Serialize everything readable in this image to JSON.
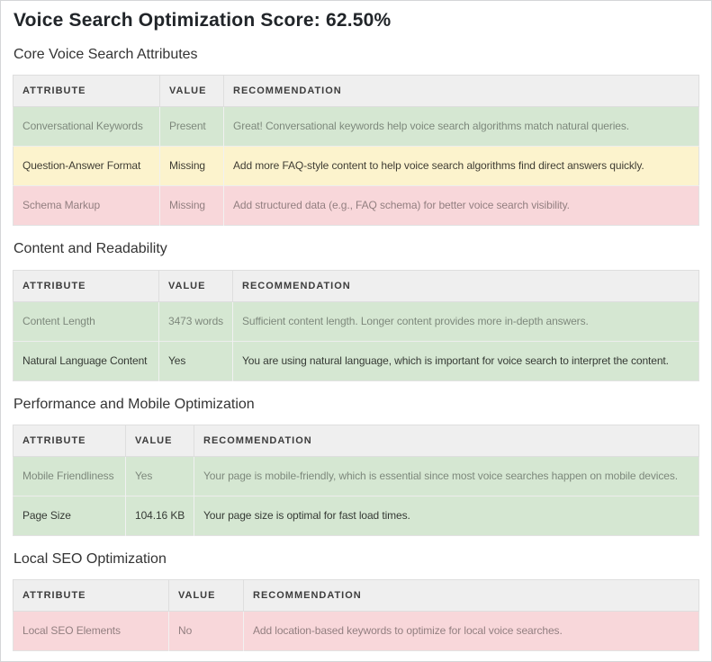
{
  "page": {
    "title": "Voice Search Optimization Score: 62.50%"
  },
  "columns": [
    "ATTRIBUTE",
    "VALUE",
    "RECOMMENDATION"
  ],
  "colors": {
    "success": "#d5e7d2",
    "warning": "#fcf3cd",
    "danger": "#f8d7da",
    "header_bg": "#efefef",
    "page_border": "#d4d6d8"
  },
  "sections": [
    {
      "heading": "Core Voice Search Attributes",
      "rows": [
        {
          "attribute": "Conversational Keywords",
          "value": "Present",
          "recommendation": "Great! Conversational keywords help voice search algorithms match natural queries.",
          "status": "success"
        },
        {
          "attribute": "Question-Answer Format",
          "value": "Missing",
          "recommendation": "Add more FAQ-style content to help voice search algorithms find direct answers quickly.",
          "status": "warning"
        },
        {
          "attribute": "Schema Markup",
          "value": "Missing",
          "recommendation": "Add structured data (e.g., FAQ schema) for better voice search visibility.",
          "status": "danger"
        }
      ]
    },
    {
      "heading": "Content and Readability",
      "rows": [
        {
          "attribute": "Content Length",
          "value": "3473 words",
          "recommendation": "Sufficient content length. Longer content provides more in-depth answers.",
          "status": "success"
        },
        {
          "attribute": "Natural Language Content",
          "value": "Yes",
          "recommendation": "You are using natural language, which is important for voice search to interpret the content.",
          "status": "success"
        }
      ]
    },
    {
      "heading": "Performance and Mobile Optimization",
      "rows": [
        {
          "attribute": "Mobile Friendliness",
          "value": "Yes",
          "recommendation": "Your page is mobile-friendly, which is essential since most voice searches happen on mobile devices.",
          "status": "success"
        },
        {
          "attribute": "Page Size",
          "value": "104.16 KB",
          "recommendation": "Your page size is optimal for fast load times.",
          "status": "success"
        }
      ]
    },
    {
      "heading": "Local SEO Optimization",
      "rows": [
        {
          "attribute": "Local SEO Elements",
          "value": "No",
          "recommendation": "Add location-based keywords to optimize for local voice searches.",
          "status": "danger"
        }
      ]
    }
  ]
}
